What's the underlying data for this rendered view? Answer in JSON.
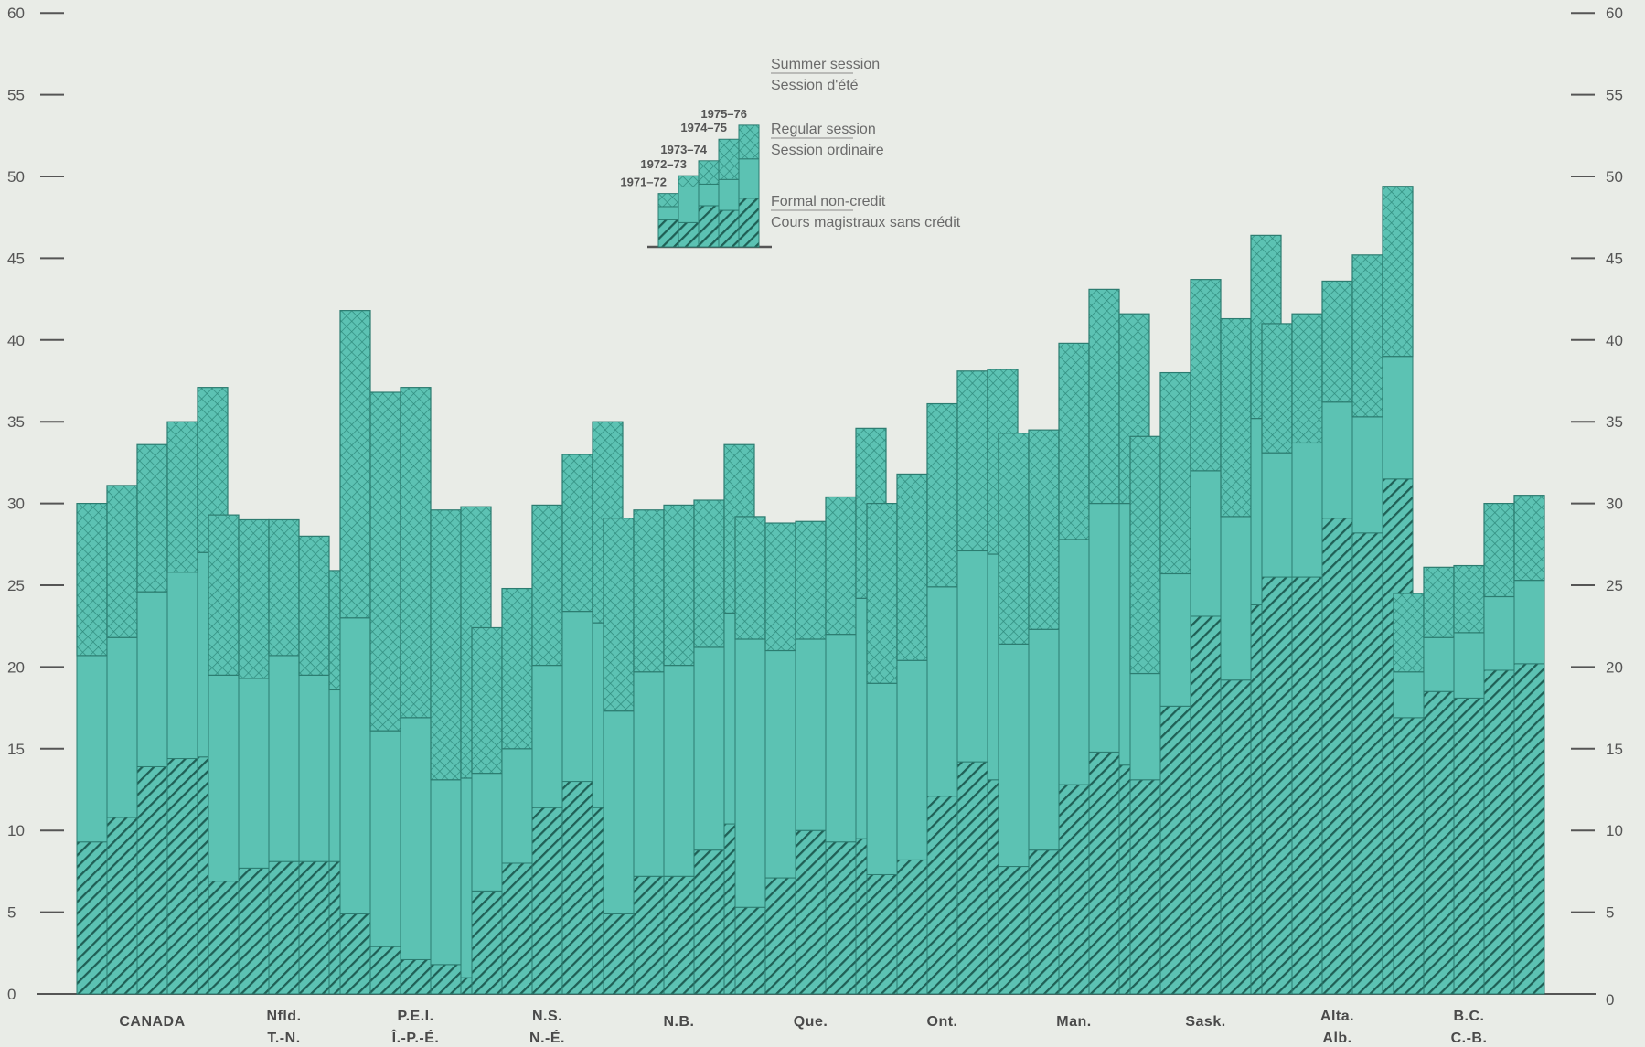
{
  "chart_data": {
    "type": "bar",
    "stacked": true,
    "ylim": [
      0,
      60
    ],
    "yticks": [
      0,
      5,
      10,
      15,
      20,
      25,
      30,
      35,
      40,
      45,
      50,
      55,
      60
    ],
    "grid": false,
    "years": [
      "1971–72",
      "1972–73",
      "1973–74",
      "1974–75",
      "1975–76"
    ],
    "stack_order": [
      "formal_non_credit",
      "regular_session",
      "summer_session"
    ],
    "legend": {
      "summer": [
        "Summer session",
        "Session d'été"
      ],
      "regular": [
        "Regular session",
        "Session ordinaire"
      ],
      "formal": [
        "Formal non-credit",
        "Cours magistraux sans crédit"
      ]
    },
    "legend_sample": {
      "formal_non_credit": [
        47.9,
        47.6,
        49.4,
        48.9,
        50.2
      ],
      "regular_session": [
        1.4,
        3.8,
        2.3,
        3.3,
        4.2
      ],
      "summer_session": [
        1.4,
        1.2,
        2.5,
        4.3,
        3.6
      ]
    },
    "provinces": [
      {
        "label": [
          "CANADA",
          ""
        ],
        "formal_non_credit": [
          9.3,
          10.8,
          13.9,
          14.4,
          14.5
        ],
        "regular_session": [
          11.4,
          11.0,
          10.7,
          11.4,
          12.5
        ],
        "summer_session": [
          9.3,
          9.3,
          9.0,
          9.2,
          10.1
        ]
      },
      {
        "label": [
          "Nfld.",
          "T.-N."
        ],
        "formal_non_credit": [
          6.9,
          7.7,
          8.1,
          8.1,
          8.1
        ],
        "regular_session": [
          12.6,
          11.6,
          12.6,
          11.4,
          10.5
        ],
        "summer_session": [
          9.8,
          9.7,
          8.3,
          8.5,
          7.3
        ]
      },
      {
        "label": [
          "P.E.I.",
          "Î.-P.-É."
        ],
        "formal_non_credit": [
          4.9,
          2.9,
          2.1,
          1.8,
          1.0
        ],
        "regular_session": [
          18.1,
          13.2,
          14.8,
          11.3,
          12.2
        ],
        "summer_session": [
          18.8,
          20.7,
          20.2,
          16.5,
          16.6
        ]
      },
      {
        "label": [
          "N.S.",
          "N.-É."
        ],
        "formal_non_credit": [
          6.3,
          8.0,
          11.4,
          13.0,
          11.4
        ],
        "regular_session": [
          7.2,
          7.0,
          8.7,
          10.4,
          11.3
        ],
        "summer_session": [
          8.9,
          9.8,
          9.8,
          9.6,
          12.3
        ]
      },
      {
        "label": [
          "N.B.",
          ""
        ],
        "formal_non_credit": [
          4.9,
          7.2,
          7.2,
          8.8,
          10.4
        ],
        "regular_session": [
          12.4,
          12.5,
          12.9,
          12.4,
          12.9
        ],
        "summer_session": [
          11.8,
          9.9,
          9.8,
          9.0,
          10.3
        ]
      },
      {
        "label": [
          "Que.",
          ""
        ],
        "formal_non_credit": [
          5.3,
          7.1,
          10.0,
          9.3,
          9.5
        ],
        "regular_session": [
          16.4,
          13.9,
          11.7,
          12.7,
          14.7
        ],
        "summer_session": [
          7.5,
          7.8,
          7.2,
          8.4,
          10.4
        ]
      },
      {
        "label": [
          "Ont.",
          ""
        ],
        "formal_non_credit": [
          7.3,
          8.2,
          12.1,
          14.2,
          13.1
        ],
        "regular_session": [
          11.7,
          12.2,
          12.8,
          12.9,
          13.8
        ],
        "summer_session": [
          11.0,
          11.4,
          11.2,
          11.0,
          11.3
        ]
      },
      {
        "label": [
          "Man.",
          ""
        ],
        "formal_non_credit": [
          7.8,
          8.8,
          12.8,
          14.8,
          14.0
        ],
        "regular_session": [
          13.6,
          13.5,
          15.0,
          15.2,
          16.0
        ],
        "summer_session": [
          12.9,
          12.2,
          12.0,
          13.1,
          11.6
        ]
      },
      {
        "label": [
          "Sask.",
          ""
        ],
        "formal_non_credit": [
          13.1,
          17.6,
          23.1,
          19.2,
          23.8
        ],
        "regular_session": [
          6.5,
          8.1,
          8.9,
          10.0,
          11.4
        ],
        "summer_session": [
          14.5,
          12.3,
          11.7,
          12.1,
          11.2
        ]
      },
      {
        "label": [
          "Alta.",
          "Alb."
        ],
        "formal_non_credit": [
          25.5,
          25.5,
          29.1,
          28.2,
          31.5
        ],
        "regular_session": [
          7.6,
          8.2,
          7.1,
          7.1,
          7.5
        ],
        "summer_session": [
          7.9,
          7.9,
          7.4,
          9.9,
          10.4
        ]
      },
      {
        "label": [
          "B.C.",
          "C.-B."
        ],
        "formal_non_credit": [
          16.9,
          18.5,
          18.1,
          19.8,
          20.2
        ],
        "regular_session": [
          2.8,
          3.3,
          4.0,
          4.5,
          5.1
        ],
        "summer_session": [
          4.8,
          4.3,
          4.1,
          5.7,
          5.2
        ]
      }
    ]
  },
  "colors": {
    "background": "#e9ece7",
    "teal": "#5cc2b3",
    "teal_dark": "#2f8a7c",
    "hatch": "#1f5f55",
    "stroke": "#2c7c70",
    "axis": "#555555"
  }
}
